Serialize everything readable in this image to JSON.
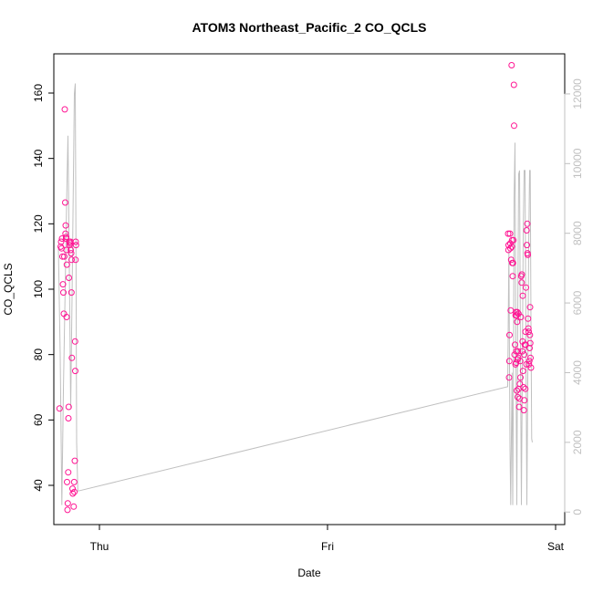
{
  "chart_data": {
    "type": "scatter",
    "title": "ATOM3 Northeast_Pacific_2 CO_QCLS",
    "xlabel": "Date",
    "ylabel": "CO_QCLS",
    "x_ticks": [
      {
        "label": "Thu",
        "day": 0
      },
      {
        "label": "Fri",
        "day": 1
      },
      {
        "label": "Sat",
        "day": 2
      }
    ],
    "xlim_days": [
      -0.2,
      2.04
    ],
    "ylim": [
      28,
      172
    ],
    "y_ticks": [
      40,
      60,
      80,
      100,
      120,
      140,
      160
    ],
    "y2_ticks": [
      0,
      2000,
      4000,
      6000,
      8000,
      10000,
      12000
    ],
    "y2lim": [
      -360,
      13150
    ],
    "colors": {
      "points": "#ff1493",
      "altitude_line": "#c0c0c0",
      "axes": "#000000",
      "right_axis": "#c0c0c0"
    },
    "grid": false,
    "series": [
      {
        "name": "",
        "axis": "left",
        "kind": "points",
        "points": [
          [
            -0.175,
            63.5
          ],
          [
            -0.17,
            113
          ],
          [
            -0.168,
            114.5
          ],
          [
            -0.166,
            112.5
          ],
          [
            -0.164,
            115.5
          ],
          [
            -0.162,
            110
          ],
          [
            -0.16,
            101.5
          ],
          [
            -0.158,
            99
          ],
          [
            -0.156,
            92.5
          ],
          [
            -0.154,
            110
          ],
          [
            -0.152,
            155
          ],
          [
            -0.15,
            126.5
          ],
          [
            -0.149,
            117
          ],
          [
            -0.148,
            119.5
          ],
          [
            -0.147,
            115.5
          ],
          [
            -0.146,
            116
          ],
          [
            -0.145,
            112
          ],
          [
            -0.144,
            91.5
          ],
          [
            -0.143,
            107.5
          ],
          [
            -0.142,
            41
          ],
          [
            -0.14,
            32.5
          ],
          [
            -0.139,
            34.5
          ],
          [
            -0.137,
            44
          ],
          [
            -0.136,
            60.5
          ],
          [
            -0.135,
            64
          ],
          [
            -0.134,
            103.5
          ],
          [
            -0.132,
            114.5
          ],
          [
            -0.131,
            113.5
          ],
          [
            -0.129,
            114
          ],
          [
            -0.127,
            114.5
          ],
          [
            -0.126,
            112
          ],
          [
            -0.124,
            111
          ],
          [
            -0.123,
            99
          ],
          [
            -0.122,
            109
          ],
          [
            -0.121,
            79
          ],
          [
            -0.118,
            39
          ],
          [
            -0.117,
            37.5
          ],
          [
            -0.113,
            33.5
          ],
          [
            -0.111,
            41
          ],
          [
            -0.11,
            38
          ],
          [
            -0.108,
            47.5
          ],
          [
            -0.107,
            84
          ],
          [
            -0.106,
            75
          ],
          [
            -0.105,
            109
          ],
          [
            -0.104,
            114.5
          ],
          [
            -0.103,
            113.5
          ],
          [
            1.792,
            117
          ],
          [
            1.793,
            112
          ],
          [
            1.794,
            113.5
          ],
          [
            1.796,
            73
          ],
          [
            1.797,
            78
          ],
          [
            1.798,
            86
          ],
          [
            1.8,
            117
          ],
          [
            1.801,
            114
          ],
          [
            1.802,
            112.5
          ],
          [
            1.803,
            93.5
          ],
          [
            1.805,
            109
          ],
          [
            1.807,
            168.5
          ],
          [
            1.808,
            113
          ],
          [
            1.809,
            115
          ],
          [
            1.81,
            108
          ],
          [
            1.812,
            104
          ],
          [
            1.813,
            108
          ],
          [
            1.815,
            115
          ],
          [
            1.817,
            162.5
          ],
          [
            1.818,
            150
          ],
          [
            1.82,
            80
          ],
          [
            1.822,
            83
          ],
          [
            1.824,
            77
          ],
          [
            1.825,
            92
          ],
          [
            1.826,
            93
          ],
          [
            1.827,
            77.5
          ],
          [
            1.828,
            81
          ],
          [
            1.829,
            92
          ],
          [
            1.83,
            69
          ],
          [
            1.831,
            90
          ],
          [
            1.832,
            93
          ],
          [
            1.833,
            78.5
          ],
          [
            1.834,
            67
          ],
          [
            1.835,
            81
          ],
          [
            1.836,
            79
          ],
          [
            1.837,
            92.5
          ],
          [
            1.838,
            69.5
          ],
          [
            1.84,
            64
          ],
          [
            1.842,
            66.5
          ],
          [
            1.843,
            71
          ],
          [
            1.845,
            78
          ],
          [
            1.846,
            73
          ],
          [
            1.848,
            91.5
          ],
          [
            1.849,
            104
          ],
          [
            1.851,
            102
          ],
          [
            1.852,
            104.5
          ],
          [
            1.854,
            81
          ],
          [
            1.855,
            84
          ],
          [
            1.856,
            98
          ],
          [
            1.857,
            75
          ],
          [
            1.859,
            70
          ],
          [
            1.861,
            63
          ],
          [
            1.862,
            80
          ],
          [
            1.863,
            66
          ],
          [
            1.865,
            83
          ],
          [
            1.867,
            69.5
          ],
          [
            1.868,
            87
          ],
          [
            1.869,
            83
          ],
          [
            1.87,
            100.5
          ],
          [
            1.872,
            77
          ],
          [
            1.873,
            118
          ],
          [
            1.874,
            113.5
          ],
          [
            1.876,
            120
          ],
          [
            1.877,
            111
          ],
          [
            1.878,
            110.5
          ],
          [
            1.879,
            91
          ],
          [
            1.881,
            88
          ],
          [
            1.882,
            87
          ],
          [
            1.883,
            77
          ],
          [
            1.885,
            78
          ],
          [
            1.886,
            82
          ],
          [
            1.887,
            86
          ],
          [
            1.888,
            94.5
          ],
          [
            1.889,
            83.5
          ],
          [
            1.89,
            79
          ],
          [
            1.892,
            76
          ]
        ]
      },
      {
        "name": "",
        "axis": "right",
        "kind": "line",
        "points": [
          [
            -0.18,
            7600
          ],
          [
            -0.172,
            4500
          ],
          [
            -0.165,
            200
          ],
          [
            -0.158,
            3500
          ],
          [
            -0.15,
            6500
          ],
          [
            -0.143,
            9300
          ],
          [
            -0.138,
            10800
          ],
          [
            -0.132,
            7000
          ],
          [
            -0.126,
            3000
          ],
          [
            -0.12,
            6200
          ],
          [
            -0.115,
            9200
          ],
          [
            -0.11,
            12000
          ],
          [
            -0.106,
            12300
          ],
          [
            -0.103,
            7500
          ],
          [
            -0.1,
            2000
          ],
          [
            -0.095,
            600
          ],
          [
            1.79,
            3600
          ],
          [
            1.795,
            7500
          ],
          [
            1.8,
            1900
          ],
          [
            1.803,
            200
          ],
          [
            1.806,
            2100
          ],
          [
            1.809,
            4000
          ],
          [
            1.812,
            200
          ],
          [
            1.815,
            4000
          ],
          [
            1.818,
            9000
          ],
          [
            1.822,
            10600
          ],
          [
            1.826,
            4500
          ],
          [
            1.83,
            200
          ],
          [
            1.834,
            5600
          ],
          [
            1.838,
            9700
          ],
          [
            1.842,
            9800
          ],
          [
            1.846,
            4500
          ],
          [
            1.85,
            200
          ],
          [
            1.854,
            4000
          ],
          [
            1.858,
            8000
          ],
          [
            1.862,
            9800
          ],
          [
            1.866,
            9800
          ],
          [
            1.87,
            4800
          ],
          [
            1.874,
            200
          ],
          [
            1.878,
            3800
          ],
          [
            1.882,
            7600
          ],
          [
            1.886,
            9800
          ],
          [
            1.889,
            9800
          ],
          [
            1.892,
            5500
          ],
          [
            1.895,
            2100
          ],
          [
            1.898,
            2000
          ]
        ]
      }
    ]
  }
}
